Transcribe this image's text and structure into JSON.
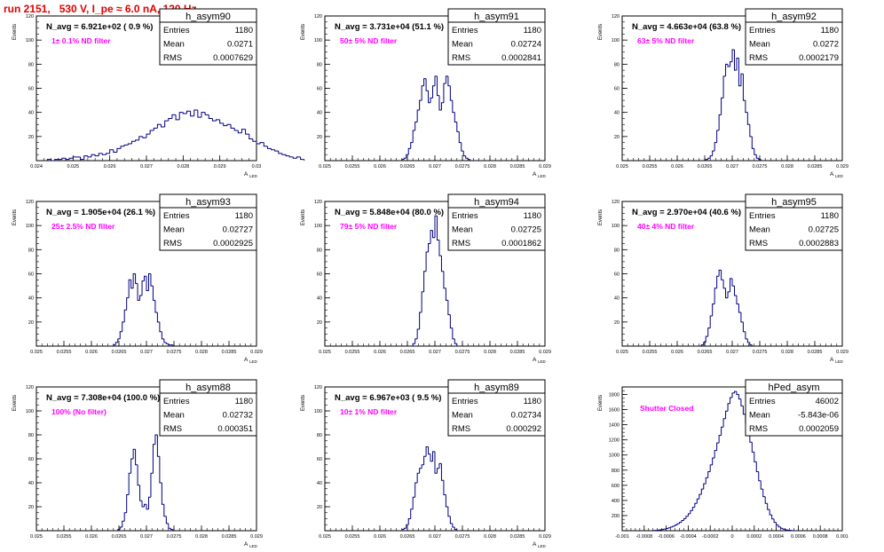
{
  "page": {
    "title": "run 2151,   530 V, I_pe ≈ 6.0 nA, 120 Hz"
  },
  "chart_data": [
    {
      "type": "histogram",
      "name": "h_asym90",
      "navg": "N_avg = 6.921e+02 ( 0.9 %)",
      "filter": "1± 0.1% ND filter",
      "stats": {
        "entries": "1180",
        "mean": "0.0271",
        "rms": "0.0007629"
      },
      "xlim": [
        0.024,
        0.03
      ],
      "ylim": [
        0,
        120
      ],
      "xticks": [
        "0.024",
        "0.025",
        "0.026",
        "0.027",
        "0.028",
        "0.029",
        "0.03"
      ],
      "yticks": [
        "20",
        "40",
        "60",
        "80",
        "100",
        "120"
      ],
      "ylabel": "Events",
      "xlabel": "A",
      "xlabel_sub": "LED",
      "bins": {
        "lo": 0.0243,
        "width": 0.0001,
        "counts": [
          1,
          0,
          1,
          1,
          2,
          1,
          2,
          3,
          3,
          1,
          4,
          3,
          5,
          4,
          6,
          5,
          6,
          9,
          7,
          10,
          12,
          13,
          14,
          16,
          17,
          20,
          19,
          22,
          25,
          27,
          30,
          28,
          33,
          35,
          38,
          34,
          40,
          39,
          41,
          37,
          42,
          36,
          40,
          38,
          35,
          33,
          34,
          31,
          29,
          30,
          27,
          25,
          23,
          26,
          22,
          18,
          16,
          14,
          15,
          12,
          10,
          9,
          8,
          6,
          5,
          4,
          3,
          2,
          3,
          1
        ]
      }
    },
    {
      "type": "histogram",
      "name": "h_asym91",
      "navg": "N_avg = 3.731e+04 (51.1 %)",
      "filter": "50± 5% ND filter",
      "stats": {
        "entries": "1180",
        "mean": "0.02724",
        "rms": "0.0002841"
      },
      "xlim": [
        0.025,
        0.029
      ],
      "ylim": [
        0,
        120
      ],
      "xticks": [
        "0.025",
        "0.0255",
        "0.026",
        "0.0265",
        "0.027",
        "0.0275",
        "0.028",
        "0.0285",
        "0.029"
      ],
      "yticks": [
        "20",
        "40",
        "60",
        "80",
        "100",
        "120"
      ],
      "ylabel": "Events",
      "xlabel": "A",
      "xlabel_sub": "LED",
      "bins": {
        "lo": 0.0264,
        "width": 4e-05,
        "counts": [
          1,
          2,
          5,
          10,
          15,
          25,
          32,
          42,
          50,
          62,
          68,
          58,
          48,
          52,
          62,
          70,
          54,
          42,
          48,
          64,
          70,
          62,
          50,
          40,
          32,
          24,
          15,
          8,
          4,
          2,
          1
        ]
      }
    },
    {
      "type": "histogram",
      "name": "h_asym92",
      "navg": "N_avg = 4.663e+04 (63.8 %)",
      "filter": "63± 5% ND filter",
      "stats": {
        "entries": "1180",
        "mean": "0.0272",
        "rms": "0.0002179"
      },
      "xlim": [
        0.025,
        0.029
      ],
      "ylim": [
        0,
        120
      ],
      "xticks": [
        "0.025",
        "0.0255",
        "0.026",
        "0.0265",
        "0.027",
        "0.0275",
        "0.028",
        "0.0285",
        "0.029"
      ],
      "yticks": [
        "20",
        "40",
        "60",
        "80",
        "100",
        "120"
      ],
      "ylabel": "Events",
      "xlabel": "A",
      "xlabel_sub": "LED",
      "bins": {
        "lo": 0.02652,
        "width": 4e-05,
        "counts": [
          1,
          2,
          4,
          8,
          15,
          25,
          38,
          52,
          70,
          80,
          78,
          82,
          92,
          75,
          85,
          62,
          72,
          50,
          40,
          30,
          20,
          10,
          5,
          2,
          1
        ]
      }
    },
    {
      "type": "histogram",
      "name": "h_asym93",
      "navg": "N_avg = 1.905e+04 (26.1 %)",
      "filter": "25± 2.5% ND filter",
      "stats": {
        "entries": "1180",
        "mean": "0.02727",
        "rms": "0.0002925"
      },
      "xlim": [
        0.025,
        0.029
      ],
      "ylim": [
        0,
        120
      ],
      "xticks": [
        "0.025",
        "0.0255",
        "0.026",
        "0.0265",
        "0.027",
        "0.0275",
        "0.028",
        "0.0285",
        "0.029"
      ],
      "yticks": [
        "20",
        "40",
        "60",
        "80",
        "100",
        "120"
      ],
      "ylabel": "Events",
      "xlabel": "A",
      "xlabel_sub": "LED",
      "bins": {
        "lo": 0.0264,
        "width": 4e-05,
        "counts": [
          1,
          3,
          6,
          12,
          20,
          30,
          40,
          55,
          48,
          60,
          52,
          38,
          42,
          54,
          58,
          46,
          60,
          50,
          38,
          28,
          20,
          12,
          6,
          3,
          2,
          1,
          1
        ]
      }
    },
    {
      "type": "histogram",
      "name": "h_asym94",
      "navg": "N_avg = 5.848e+04 (80.0 %)",
      "filter": "79± 5% ND filter",
      "stats": {
        "entries": "1180",
        "mean": "0.02725",
        "rms": "0.0001862"
      },
      "xlim": [
        0.025,
        0.029
      ],
      "ylim": [
        0,
        120
      ],
      "xticks": [
        "0.025",
        "0.0255",
        "0.026",
        "0.0265",
        "0.027",
        "0.0275",
        "0.028",
        "0.0285",
        "0.029"
      ],
      "yticks": [
        "20",
        "40",
        "60",
        "80",
        "100",
        "120"
      ],
      "ylabel": "Events",
      "xlabel": "A",
      "xlabel_sub": "LED",
      "bins": {
        "lo": 0.0266,
        "width": 4e-05,
        "counts": [
          2,
          6,
          14,
          28,
          45,
          62,
          78,
          85,
          96,
          90,
          108,
          88,
          75,
          62,
          48,
          38,
          26,
          15,
          6,
          2
        ]
      }
    },
    {
      "type": "histogram",
      "name": "h_asym95",
      "navg": "N_avg = 2.970e+04 (40.6 %)",
      "filter": "40± 4% ND filter",
      "stats": {
        "entries": "1180",
        "mean": "0.02725",
        "rms": "0.0002883"
      },
      "xlim": [
        0.025,
        0.029
      ],
      "ylim": [
        0,
        120
      ],
      "xticks": [
        "0.025",
        "0.0255",
        "0.026",
        "0.0265",
        "0.027",
        "0.0275",
        "0.028",
        "0.0285",
        "0.029"
      ],
      "yticks": [
        "20",
        "40",
        "60",
        "80",
        "100",
        "120"
      ],
      "ylabel": "Events",
      "xlabel": "A",
      "xlabel_sub": "LED",
      "bins": {
        "lo": 0.02644,
        "width": 4e-05,
        "counts": [
          1,
          3,
          8,
          15,
          25,
          35,
          48,
          58,
          63,
          55,
          48,
          40,
          45,
          56,
          50,
          42,
          35,
          28,
          20,
          12,
          6,
          3,
          1
        ]
      }
    },
    {
      "type": "histogram",
      "name": "h_asym88",
      "navg": "N_avg = 7.308e+04 (100.0 %)",
      "filter": "100% (No filter)",
      "stats": {
        "entries": "1180",
        "mean": "0.02732",
        "rms": "0.000351"
      },
      "xlim": [
        0.025,
        0.029
      ],
      "ylim": [
        0,
        120
      ],
      "xticks": [
        "0.025",
        "0.0255",
        "0.026",
        "0.0265",
        "0.027",
        "0.0275",
        "0.028",
        "0.0285",
        "0.029"
      ],
      "yticks": [
        "20",
        "40",
        "60",
        "80",
        "100",
        "120"
      ],
      "ylabel": "Events",
      "xlabel": "A",
      "xlabel_sub": "LED",
      "bins": {
        "lo": 0.02648,
        "width": 4e-05,
        "counts": [
          1,
          3,
          8,
          15,
          30,
          48,
          60,
          68,
          55,
          38,
          25,
          20,
          22,
          18,
          28,
          48,
          72,
          80,
          62,
          40,
          22,
          12,
          6,
          2,
          1
        ]
      }
    },
    {
      "type": "histogram",
      "name": "h_asym89",
      "navg": "N_avg = 6.967e+03 ( 9.5 %)",
      "filter": "10± 1% ND filter",
      "stats": {
        "entries": "1180",
        "mean": "0.02734",
        "rms": "0.000292"
      },
      "xlim": [
        0.025,
        0.029
      ],
      "ylim": [
        0,
        120
      ],
      "xticks": [
        "0.025",
        "0.0255",
        "0.026",
        "0.0265",
        "0.027",
        "0.0275",
        "0.028",
        "0.0285",
        "0.029"
      ],
      "yticks": [
        "20",
        "40",
        "60",
        "80",
        "100",
        "120"
      ],
      "ylabel": "Events",
      "xlabel": "A",
      "xlabel_sub": "LED",
      "bins": {
        "lo": 0.0264,
        "width": 4e-05,
        "counts": [
          1,
          2,
          5,
          10,
          18,
          28,
          40,
          48,
          52,
          55,
          62,
          70,
          64,
          58,
          66,
          48,
          52,
          56,
          42,
          30,
          20,
          12,
          6,
          3,
          1
        ]
      }
    },
    {
      "type": "histogram",
      "name": "hPed_asym",
      "navg": "",
      "filter": "Shutter Closed",
      "stats": {
        "entries": "46002",
        "mean": "-5.843e-06",
        "rms": "0.0002059"
      },
      "xlim": [
        -0.001,
        0.001
      ],
      "ylim": [
        0,
        1900
      ],
      "xticks": [
        "-0.001",
        "-0.0008",
        "-0.0006",
        "-0.0004",
        "-0.0002",
        "0",
        "0.0002",
        "0.0004",
        "0.0006",
        "0.0008",
        "0.001"
      ],
      "yticks": [
        "200",
        "400",
        "600",
        "800",
        "1000",
        "1200",
        "1400",
        "1600",
        "1800"
      ],
      "ylabel": "Events",
      "xlabel": "",
      "xlabel_sub": "",
      "bins": {
        "lo": -0.00072,
        "width": 2e-05,
        "counts": [
          3,
          5,
          8,
          12,
          16,
          22,
          30,
          38,
          48,
          60,
          75,
          92,
          110,
          135,
          160,
          190,
          225,
          265,
          310,
          360,
          420,
          480,
          550,
          620,
          700,
          780,
          870,
          960,
          1060,
          1160,
          1260,
          1370,
          1480,
          1580,
          1680,
          1760,
          1820,
          1840,
          1800,
          1740,
          1650,
          1540,
          1420,
          1300,
          1170,
          1040,
          910,
          780,
          660,
          550,
          450,
          360,
          280,
          210,
          155,
          110,
          75,
          50,
          32,
          20,
          12,
          7,
          4,
          2
        ]
      }
    }
  ]
}
